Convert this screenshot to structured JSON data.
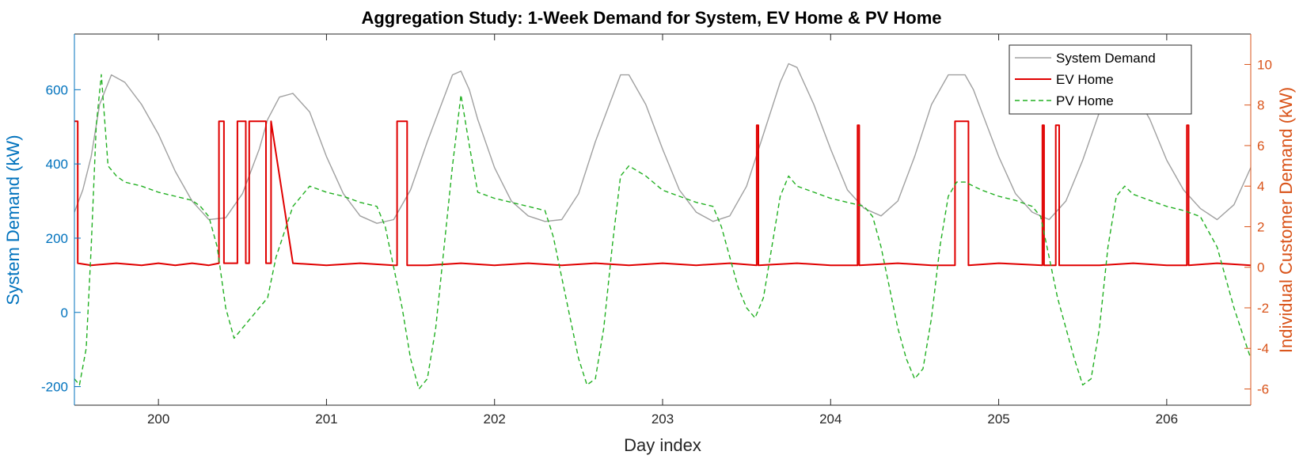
{
  "chart_data": {
    "type": "line",
    "title": "Aggregation Study: 1-Week Demand for System, EV Home & PV Home",
    "xlabel": "Day index",
    "ylabel_left": "System Demand (kW)",
    "ylabel_right": "Individual Customer Demand (kW)",
    "xlim": [
      199.5,
      206.5
    ],
    "ylim_left": [
      -250,
      750
    ],
    "ylim_right": [
      -6.8,
      11.5
    ],
    "x_ticks": [
      200,
      201,
      202,
      203,
      204,
      205,
      206
    ],
    "y_left_ticks": [
      -200,
      0,
      200,
      400,
      600
    ],
    "y_right_ticks": [
      -6,
      -4,
      -2,
      0,
      2,
      4,
      6,
      8,
      10
    ],
    "grid": false,
    "legend_position": "top-right",
    "colors": {
      "left_axis": "#0072BD",
      "right_axis": "#D95319",
      "system": "#a0a0a0",
      "ev": "#e00000",
      "pv": "#22b022"
    },
    "series": [
      {
        "name": "System Demand",
        "axis": "left",
        "style": "solid",
        "x": [
          199.5,
          199.55,
          199.6,
          199.65,
          199.72,
          199.8,
          199.9,
          200.0,
          200.1,
          200.2,
          200.3,
          200.4,
          200.5,
          200.6,
          200.65,
          200.72,
          200.8,
          200.9,
          201.0,
          201.1,
          201.2,
          201.3,
          201.4,
          201.5,
          201.6,
          201.7,
          201.75,
          201.8,
          201.85,
          201.9,
          202.0,
          202.1,
          202.2,
          202.3,
          202.4,
          202.5,
          202.6,
          202.7,
          202.75,
          202.8,
          202.9,
          203.0,
          203.1,
          203.2,
          203.3,
          203.4,
          203.5,
          203.6,
          203.7,
          203.75,
          203.8,
          203.9,
          204.0,
          204.1,
          204.2,
          204.3,
          204.4,
          204.5,
          204.6,
          204.7,
          204.8,
          204.85,
          204.9,
          205.0,
          205.1,
          205.2,
          205.3,
          205.4,
          205.5,
          205.6,
          205.7,
          205.8,
          205.9,
          206.0,
          206.1,
          206.2,
          206.3,
          206.4,
          206.5
        ],
        "y": [
          270,
          330,
          420,
          560,
          640,
          620,
          560,
          480,
          380,
          300,
          250,
          255,
          320,
          440,
          520,
          580,
          590,
          540,
          420,
          320,
          260,
          240,
          250,
          330,
          460,
          580,
          640,
          650,
          600,
          520,
          390,
          300,
          260,
          245,
          250,
          320,
          460,
          580,
          640,
          640,
          560,
          440,
          330,
          270,
          245,
          260,
          340,
          480,
          620,
          670,
          660,
          560,
          440,
          330,
          280,
          260,
          300,
          420,
          560,
          640,
          640,
          600,
          540,
          420,
          320,
          270,
          250,
          300,
          410,
          540,
          610,
          600,
          520,
          410,
          330,
          280,
          250,
          290,
          390
        ]
      },
      {
        "name": "EV Home",
        "axis": "right",
        "style": "solid",
        "x": [
          199.5,
          199.52,
          199.52,
          199.6,
          199.75,
          199.9,
          200.0,
          200.1,
          200.2,
          200.3,
          200.36,
          200.36,
          200.39,
          200.39,
          200.47,
          200.47,
          200.52,
          200.52,
          200.54,
          200.54,
          200.64,
          200.64,
          200.67,
          200.67,
          200.8,
          201.0,
          201.2,
          201.4,
          201.42,
          201.42,
          201.48,
          201.48,
          201.6,
          201.8,
          202.0,
          202.2,
          202.4,
          202.6,
          202.8,
          203.0,
          203.2,
          203.4,
          203.56,
          203.56,
          203.57,
          203.57,
          203.8,
          204.0,
          204.16,
          204.16,
          204.17,
          204.17,
          204.4,
          204.6,
          204.74,
          204.74,
          204.82,
          204.82,
          205.0,
          205.26,
          205.26,
          205.27,
          205.27,
          205.34,
          205.34,
          205.36,
          205.36,
          205.6,
          205.8,
          206.0,
          206.12,
          206.12,
          206.13,
          206.13,
          206.3,
          206.5
        ],
        "y": [
          7.2,
          7.2,
          0.2,
          0.1,
          0.2,
          0.1,
          0.2,
          0.1,
          0.2,
          0.1,
          0.2,
          7.2,
          7.2,
          0.2,
          0.2,
          7.2,
          7.2,
          0.2,
          0.2,
          7.2,
          7.2,
          0.2,
          0.2,
          7.2,
          0.2,
          0.1,
          0.2,
          0.1,
          0.1,
          7.2,
          7.2,
          0.1,
          0.1,
          0.2,
          0.1,
          0.2,
          0.1,
          0.2,
          0.1,
          0.2,
          0.1,
          0.2,
          0.1,
          7.0,
          7.0,
          0.1,
          0.2,
          0.1,
          0.1,
          7.0,
          7.0,
          0.1,
          0.2,
          0.1,
          0.1,
          7.2,
          7.2,
          0.1,
          0.2,
          0.1,
          7.0,
          7.0,
          0.1,
          0.1,
          7.0,
          7.0,
          0.1,
          0.1,
          0.2,
          0.1,
          0.1,
          7.0,
          7.0,
          0.1,
          0.2,
          0.1
        ]
      },
      {
        "name": "PV Home",
        "axis": "right",
        "style": "dashed",
        "x": [
          199.5,
          199.53,
          199.57,
          199.6,
          199.63,
          199.66,
          199.7,
          199.75,
          199.8,
          199.9,
          200.0,
          200.1,
          200.2,
          200.25,
          200.3,
          200.35,
          200.4,
          200.45,
          200.5,
          200.55,
          200.6,
          200.65,
          200.7,
          200.8,
          200.9,
          201.0,
          201.1,
          201.2,
          201.3,
          201.35,
          201.4,
          201.45,
          201.5,
          201.55,
          201.6,
          201.65,
          201.7,
          201.75,
          201.8,
          201.85,
          201.9,
          202.0,
          202.1,
          202.2,
          202.3,
          202.35,
          202.4,
          202.45,
          202.5,
          202.55,
          202.6,
          202.65,
          202.7,
          202.75,
          202.8,
          202.9,
          203.0,
          203.1,
          203.2,
          203.3,
          203.35,
          203.4,
          203.45,
          203.5,
          203.55,
          203.6,
          203.65,
          203.7,
          203.75,
          203.8,
          203.9,
          204.0,
          204.1,
          204.2,
          204.25,
          204.3,
          204.35,
          204.4,
          204.45,
          204.5,
          204.55,
          204.6,
          204.65,
          204.7,
          204.75,
          204.8,
          204.9,
          205.0,
          205.1,
          205.2,
          205.25,
          205.3,
          205.35,
          205.4,
          205.45,
          205.5,
          205.55,
          205.6,
          205.65,
          205.7,
          205.75,
          205.8,
          205.9,
          206.0,
          206.1,
          206.2,
          206.3,
          206.4,
          206.5
        ],
        "y": [
          -5.5,
          -5.8,
          -4.0,
          1.0,
          7.0,
          9.5,
          5.0,
          4.5,
          4.2,
          4.0,
          3.7,
          3.5,
          3.3,
          3.0,
          2.5,
          1.0,
          -2.0,
          -3.5,
          -3.0,
          -2.5,
          -2.0,
          -1.5,
          0.5,
          3.0,
          4.0,
          3.7,
          3.5,
          3.2,
          3.0,
          2.0,
          0.0,
          -2.0,
          -4.5,
          -6.0,
          -5.5,
          -3.0,
          1.0,
          5.0,
          8.5,
          6.0,
          3.7,
          3.4,
          3.2,
          3.0,
          2.8,
          1.5,
          -0.5,
          -2.5,
          -4.5,
          -5.8,
          -5.5,
          -3.0,
          1.0,
          4.5,
          5.0,
          4.5,
          3.8,
          3.5,
          3.2,
          3.0,
          2.0,
          0.5,
          -1.0,
          -2.0,
          -2.5,
          -1.5,
          1.0,
          3.5,
          4.5,
          4.0,
          3.7,
          3.4,
          3.2,
          3.0,
          2.5,
          1.0,
          -1.0,
          -3.0,
          -4.5,
          -5.5,
          -5.0,
          -2.5,
          1.0,
          3.5,
          4.2,
          4.2,
          3.8,
          3.5,
          3.3,
          3.0,
          2.5,
          0.5,
          -1.5,
          -3.0,
          -4.5,
          -5.8,
          -5.5,
          -3.0,
          1.0,
          3.5,
          4.0,
          3.6,
          3.3,
          3.0,
          2.8,
          2.5,
          1.0,
          -2.0,
          -4.5
        ]
      }
    ]
  }
}
